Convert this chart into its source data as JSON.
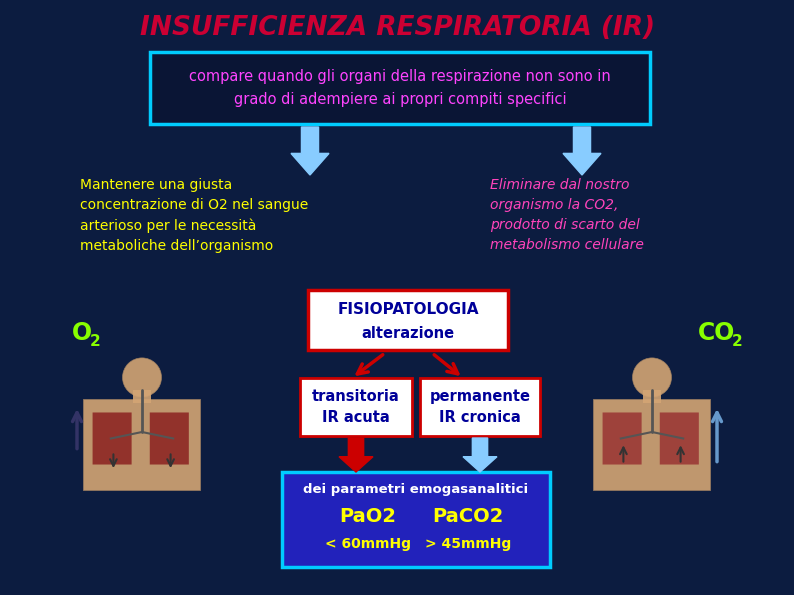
{
  "title": "INSUFFICIENZA RESPIRATORIA (IR)",
  "title_color": "#cc0033",
  "bg_color": "#0a1535",
  "subtitle_box_text": "compare quando gli organi della respirazione non sono in\ngrado di adempiere ai propri compiti specifici",
  "subtitle_text_color": "#ff44ff",
  "subtitle_box_edge": "#00ccff",
  "left_text": "Mantenere una giusta\nconcentrazione di O2 nel sangue\narterioso per le necessità\nmetaboliche dell’organismo",
  "left_text_color": "#ffff00",
  "right_text": "Eliminare dal nostro\norganismo la CO2,\nprodotto di scarto del\nmetabolismo cellulare",
  "right_text_color": "#ff44bb",
  "fisio_title": "FISIOPATOLOGIA",
  "fisio_sub": "alterazione",
  "fisio_text_color": "#000099",
  "fisio_box_edge": "#cc0000",
  "fisio_box_face": "#ffffff",
  "left_branch_text": "transitoria\nIR acuta",
  "right_branch_text": "permanente\nIR cronica",
  "branch_text_color": "#000099",
  "branch_box_edge": "#cc0000",
  "branch_box_face": "#ffffff",
  "bottom_box_face": "#2222bb",
  "bottom_box_edge": "#00ccff",
  "bottom_line1": "dei parametri emogasanalitici",
  "bottom_line2_left": "PaO2",
  "bottom_line2_right": "PaCO2",
  "bottom_line3_left": "< 60mmHg",
  "bottom_line3_right": "> 45mmHg",
  "bottom_text_color1": "#ffffff",
  "bottom_text_color2": "#ffff00",
  "o2_color": "#88ff00",
  "co2_color": "#88ff00",
  "arrow_cyan": "#88ccff",
  "arrow_red": "#cc0000",
  "body_left_color": "#c8b090",
  "body_right_color": "#c88070"
}
